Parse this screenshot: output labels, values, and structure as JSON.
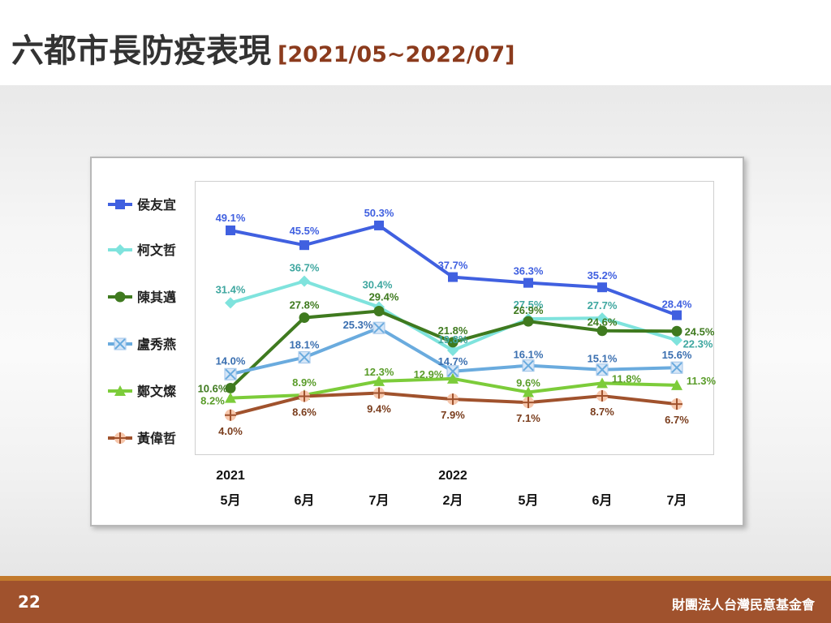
{
  "slide": {
    "title": "六都市長防疫表現",
    "subtitle": "[2021/05~2022/07]",
    "page_number": "22",
    "organization": "財團法人台灣民意基金會"
  },
  "chart_data": {
    "type": "line",
    "categories": [
      "5月",
      "6月",
      "7月",
      "2月",
      "5月",
      "6月",
      "7月"
    ],
    "year_labels": [
      {
        "label": "2021",
        "at_index": 0
      },
      {
        "label": "2022",
        "at_index": 3
      }
    ],
    "ylim": [
      0,
      55
    ],
    "grid": false,
    "legend_position": "left",
    "series": [
      {
        "name": "侯友宜",
        "color": "#4060e0",
        "label_color": "#4060e0",
        "marker": "square",
        "values": [
          49.1,
          45.5,
          50.3,
          37.7,
          36.3,
          35.2,
          28.4
        ],
        "labels": [
          "49.1%",
          "45.5%",
          "50.3%",
          "37.7%",
          "36.3%",
          "35.2%",
          "28.4%"
        ]
      },
      {
        "name": "柯文哲",
        "color": "#7fe3dd",
        "label_color": "#3fa7a0",
        "marker": "diamond",
        "values": [
          31.4,
          36.7,
          30.4,
          19.8,
          27.5,
          27.7,
          22.3
        ],
        "labels": [
          "31.4%",
          "36.7%",
          "30.4%",
          "19.8%",
          "27.5%",
          "27.7%",
          "22.3%"
        ]
      },
      {
        "name": "陳其邁",
        "color": "#3f7a1f",
        "label_color": "#3f7a1f",
        "marker": "circle",
        "values": [
          10.6,
          27.8,
          29.4,
          21.8,
          26.9,
          24.6,
          24.5
        ],
        "labels": [
          "10.6%",
          "27.8%",
          "29.4%",
          "21.8%",
          "26.9%",
          "24.6%",
          "24.5%"
        ]
      },
      {
        "name": "盧秀燕",
        "color": "#6aabde",
        "label_color": "#3a6fb0",
        "marker": "x",
        "values": [
          14.0,
          18.1,
          25.3,
          14.7,
          16.1,
          15.1,
          15.6
        ],
        "labels": [
          "14.0%",
          "18.1%",
          "25.3%",
          "14.7%",
          "16.1%",
          "15.1%",
          "15.6%"
        ]
      },
      {
        "name": "鄭文燦",
        "color": "#7ccc3a",
        "label_color": "#5a9c2a",
        "marker": "triangle",
        "values": [
          8.2,
          8.9,
          12.3,
          12.9,
          9.6,
          11.8,
          11.3
        ],
        "labels": [
          "8.2%",
          "8.9%",
          "12.3%",
          "12.9%",
          "9.6%",
          "11.8%",
          "11.3%"
        ]
      },
      {
        "name": "黃偉哲",
        "color": "#a0522d",
        "label_color": "#7a3d1d",
        "marker": "plus",
        "values": [
          4.0,
          8.6,
          9.4,
          7.9,
          7.1,
          8.7,
          6.7
        ],
        "labels": [
          "4.0%",
          "8.6%",
          "9.4%",
          "7.9%",
          "7.1%",
          "8.7%",
          "6.7%"
        ]
      }
    ]
  }
}
